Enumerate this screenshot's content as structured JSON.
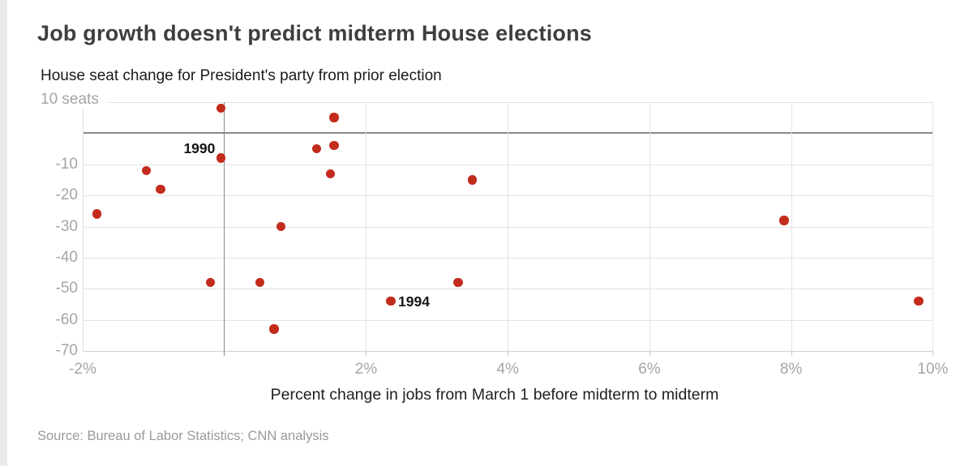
{
  "header": {
    "title": "Job growth doesn't predict midterm House elections",
    "subtitle": "House seat change for President's party from prior election"
  },
  "footer": {
    "source": "Source: Bureau of Labor Statistics; CNN analysis"
  },
  "chart_data": {
    "type": "scatter",
    "title": "Job growth doesn't predict midterm House elections",
    "subtitle": "House seat change for President's party from prior election",
    "xlabel": "Percent change in jobs from March 1 before midterm to midterm",
    "ylabel": "House seat change for President's party from prior election",
    "y_unit_label": "10 seats",
    "point_color": "#c32b1d",
    "grid_color": "#e4e4e4",
    "zero_line_color": "#8a8a8a",
    "x_axis": {
      "min": -2,
      "max": 10,
      "zero_line": 0,
      "ticks": [
        {
          "v": -2,
          "label": "-2%"
        },
        {
          "v": 2,
          "label": "2%"
        },
        {
          "v": 4,
          "label": "4%"
        },
        {
          "v": 6,
          "label": "6%"
        },
        {
          "v": 8,
          "label": "8%"
        },
        {
          "v": 10,
          "label": "10%"
        }
      ]
    },
    "y_axis": {
      "min": -70,
      "max": 10,
      "zero_line": 0,
      "gridlines": [
        10,
        0,
        -10,
        -20,
        -30,
        -40,
        -50,
        -60,
        -70
      ],
      "labeled_ticks": [
        {
          "v": -10,
          "label": "-10"
        },
        {
          "v": -20,
          "label": "-20"
        },
        {
          "v": -30,
          "label": "-30"
        },
        {
          "v": -40,
          "label": "-40"
        },
        {
          "v": -50,
          "label": "-50"
        },
        {
          "v": -60,
          "label": "-60"
        },
        {
          "v": -70,
          "label": "-70"
        }
      ]
    },
    "points": [
      {
        "x": -1.8,
        "y": -26
      },
      {
        "x": -1.1,
        "y": -12
      },
      {
        "x": -0.9,
        "y": -18
      },
      {
        "x": -0.2,
        "y": -48
      },
      {
        "x": -0.05,
        "y": -8
      },
      {
        "x": -0.05,
        "y": 8
      },
      {
        "x": 0.5,
        "y": -48
      },
      {
        "x": 0.7,
        "y": -63
      },
      {
        "x": 0.8,
        "y": -30
      },
      {
        "x": 1.3,
        "y": -5
      },
      {
        "x": 1.5,
        "y": -13
      },
      {
        "x": 1.55,
        "y": -4
      },
      {
        "x": 1.55,
        "y": 5
      },
      {
        "x": 2.35,
        "y": -54
      },
      {
        "x": 3.3,
        "y": -48
      },
      {
        "x": 3.5,
        "y": -15
      },
      {
        "x": 7.9,
        "y": -28
      },
      {
        "x": 9.8,
        "y": -54
      }
    ],
    "annotations": [
      {
        "label": "1990",
        "x": -0.05,
        "y": -8,
        "side": "left"
      },
      {
        "label": "1994",
        "x": 2.35,
        "y": -54,
        "side": "right"
      }
    ]
  }
}
